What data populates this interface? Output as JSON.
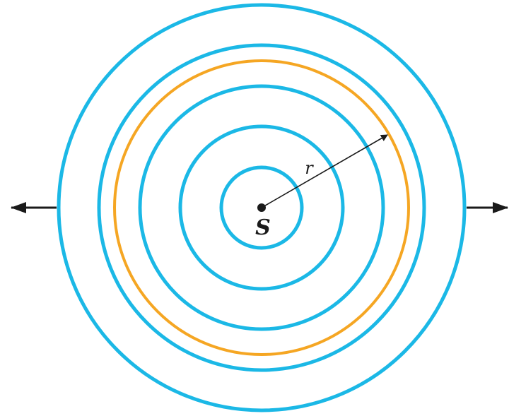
{
  "labels": {
    "source": "S",
    "radius": "r"
  },
  "colors": {
    "wavefront": "#1BB8E6",
    "highlight_wavefront": "#F5A623",
    "ink": "#1a1a1a",
    "background": "#ffffff"
  },
  "wavefronts": {
    "count": 6,
    "highlighted": 1
  },
  "outward_arrows": [
    "left",
    "right"
  ]
}
